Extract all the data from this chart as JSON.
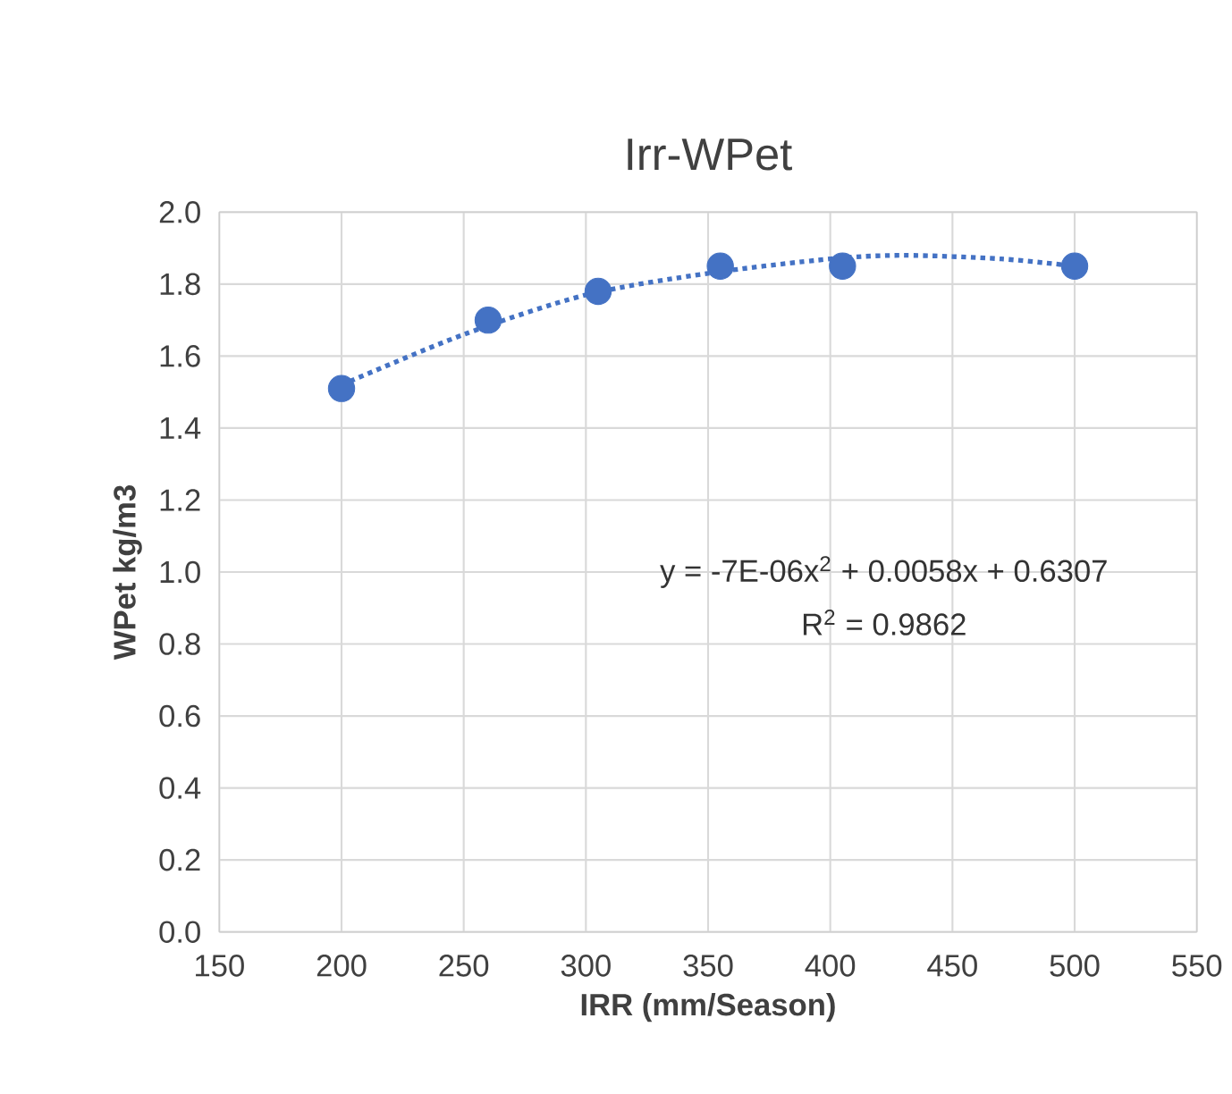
{
  "chart_data": {
    "type": "scatter",
    "title": "Irr-WPet",
    "xlabel": "IRR (mm/Season)",
    "ylabel": "WPet kg/m3",
    "series": [
      {
        "color": "#4472c4",
        "x": [
          200,
          260,
          305,
          355,
          405,
          500
        ],
        "values": [
          1.51,
          1.7,
          1.78,
          1.85,
          1.85,
          1.85
        ],
        "marker": "circle"
      },
      {
        "type": "line",
        "color": "#4472c4",
        "line_style": "dotted",
        "marker": "none",
        "x": [
          200,
          250,
          300,
          350,
          400,
          430,
          470,
          500
        ],
        "values": [
          1.52,
          1.66,
          1.77,
          1.83,
          1.87,
          1.88,
          1.87,
          1.85
        ]
      }
    ],
    "annotations": [
      "y = -7E-06x$^{2}$ + 0.0058x + 0.6307",
      "R$^{2}$ = 0.9862"
    ],
    "xlim": [
      150,
      550
    ],
    "xticks": [
      150,
      200,
      250,
      300,
      350,
      400,
      450,
      500,
      550
    ],
    "ylim": [
      0,
      2
    ],
    "yticks": [
      {
        "value": 0,
        "label": "0.0"
      },
      {
        "value": 0.2,
        "label": "0.2"
      },
      {
        "value": 0.4,
        "label": "0.4"
      },
      {
        "value": 0.6,
        "label": "0.6"
      },
      {
        "value": 0.8,
        "label": "0.8"
      },
      {
        "value": 1.0,
        "label": "1.0"
      },
      {
        "value": 1.2,
        "label": "1.2"
      },
      {
        "value": 1.4,
        "label": "1.4"
      },
      {
        "value": 1.6,
        "label": "1.6"
      },
      {
        "value": 1.8,
        "label": "1.8"
      },
      {
        "value": 2.0,
        "label": "2.0"
      }
    ],
    "grid": true
  }
}
